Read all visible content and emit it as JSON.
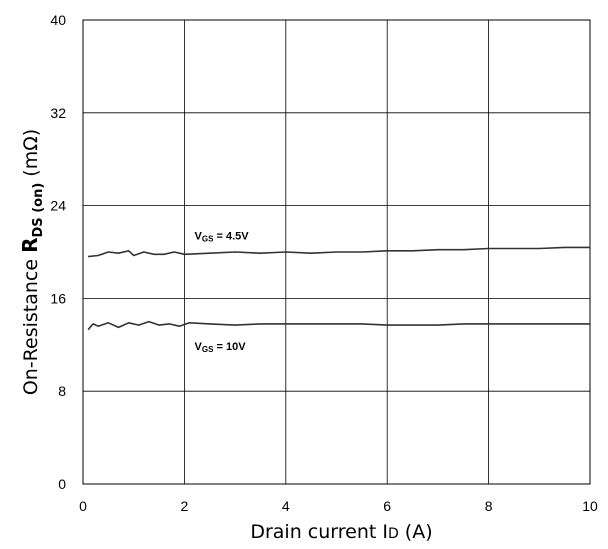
{
  "chart_data": {
    "type": "line",
    "title": "",
    "xlabel": {
      "main": "Drain current I",
      "sub": "D",
      "tail": " (A)"
    },
    "ylabel": {
      "main": "On-Resistance  ",
      "bold": "R",
      "sub": "DS (on)",
      "tail": " (mΩ)"
    },
    "xlim": [
      0,
      10
    ],
    "ylim": [
      0,
      40
    ],
    "xticks": [
      0,
      2,
      4,
      6,
      8,
      10
    ],
    "yticks": [
      0,
      8,
      16,
      24,
      32,
      40
    ],
    "grid": true,
    "series": [
      {
        "name": "VGS = 4.5V",
        "label": {
          "v": "V",
          "sub": "GS",
          "rest": " = 4.5V"
        },
        "color": "#333333",
        "x": [
          0.1,
          0.3,
          0.5,
          0.7,
          0.9,
          1.0,
          1.2,
          1.4,
          1.6,
          1.8,
          2.0,
          2.5,
          3.0,
          3.5,
          4.0,
          4.5,
          5.0,
          5.5,
          6.0,
          6.5,
          7.0,
          7.5,
          8.0,
          8.5,
          9.0,
          9.5,
          10.0
        ],
        "y": [
          19.6,
          19.7,
          20.0,
          19.9,
          20.1,
          19.7,
          20.0,
          19.8,
          19.8,
          20.0,
          19.8,
          19.9,
          20.0,
          19.9,
          20.0,
          19.9,
          20.0,
          20.0,
          20.1,
          20.1,
          20.2,
          20.2,
          20.3,
          20.3,
          20.3,
          20.4,
          20.4
        ]
      },
      {
        "name": "VGS = 10V",
        "label": {
          "v": "V",
          "sub": "GS",
          "rest": " = 10V"
        },
        "color": "#333333",
        "x": [
          0.1,
          0.2,
          0.3,
          0.5,
          0.7,
          0.9,
          1.1,
          1.3,
          1.5,
          1.7,
          1.9,
          2.1,
          2.5,
          3.0,
          3.5,
          4.0,
          4.5,
          5.0,
          5.5,
          6.0,
          6.5,
          7.0,
          7.5,
          8.0,
          8.5,
          9.0,
          9.5,
          10.0
        ],
        "y": [
          13.3,
          13.8,
          13.6,
          13.9,
          13.5,
          13.9,
          13.7,
          14.0,
          13.7,
          13.8,
          13.6,
          13.9,
          13.8,
          13.7,
          13.8,
          13.8,
          13.8,
          13.8,
          13.8,
          13.7,
          13.7,
          13.7,
          13.8,
          13.8,
          13.8,
          13.8,
          13.8,
          13.8
        ]
      }
    ]
  }
}
